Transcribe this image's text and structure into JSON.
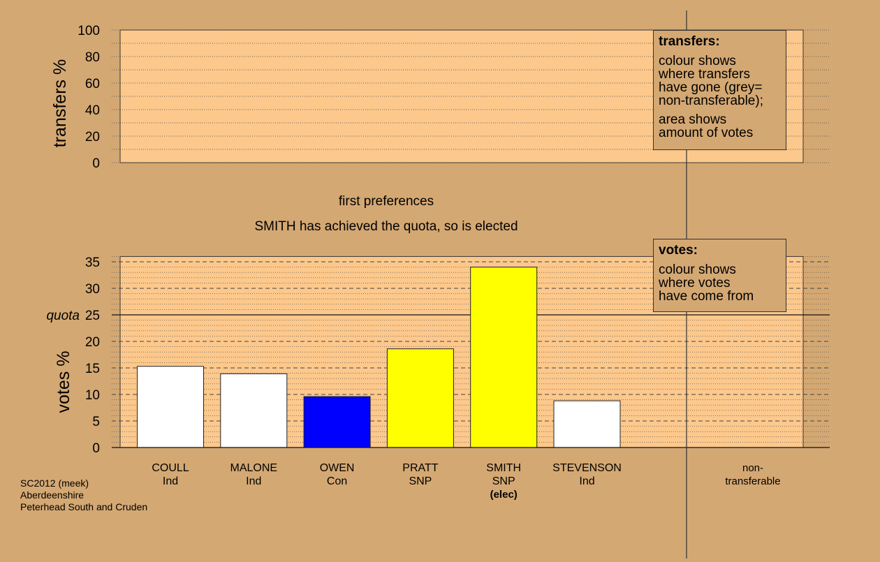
{
  "colors": {
    "background": "#d4a873",
    "plot_area": "#fcc88c",
    "bar_outline": "#222222"
  },
  "chart_data": [
    {
      "type": "bar",
      "ylabel": "transfers %",
      "ylim": [
        0,
        100
      ],
      "yticks": [
        0,
        20,
        40,
        60,
        80,
        100
      ],
      "series": [],
      "legend_note": {
        "heading": "transfers:",
        "lines": [
          "colour shows",
          "where transfers",
          "have gone (grey=",
          "non-transferable);"
        ],
        "lines2": [
          "area shows",
          "amount of votes"
        ]
      }
    },
    {
      "type": "bar",
      "title": "first preferences",
      "subtitle": "SMITH has achieved the quota, so is elected",
      "ylabel": "votes %",
      "ylim": [
        0,
        36
      ],
      "yticks": [
        0,
        5,
        10,
        15,
        20,
        25,
        30,
        35
      ],
      "quota": {
        "label": "quota",
        "value": 25
      },
      "categories": [
        {
          "name": "COULL",
          "party": "Ind",
          "note": "",
          "value": 15.3,
          "color": "#ffffff"
        },
        {
          "name": "MALONE",
          "party": "Ind",
          "note": "",
          "value": 13.9,
          "color": "#ffffff"
        },
        {
          "name": "OWEN",
          "party": "Con",
          "note": "",
          "value": 9.6,
          "color": "#0000ff"
        },
        {
          "name": "PRATT",
          "party": "SNP",
          "note": "",
          "value": 18.6,
          "color": "#ffff00"
        },
        {
          "name": "SMITH",
          "party": "SNP",
          "note": "(elec)",
          "value": 34.0,
          "color": "#ffff00"
        },
        {
          "name": "STEVENSON",
          "party": "Ind",
          "note": "",
          "value": 8.8,
          "color": "#ffffff"
        }
      ],
      "non_transferable": {
        "line1": "non-",
        "line2": "transferable",
        "value": 0
      },
      "legend_note": {
        "heading": "votes:",
        "lines": [
          "colour shows",
          "where votes",
          "have come from"
        ]
      }
    }
  ],
  "footer": {
    "line1": "SC2012 (meek)",
    "line2": "Aberdeenshire",
    "line3": "Peterhead South and Cruden"
  }
}
